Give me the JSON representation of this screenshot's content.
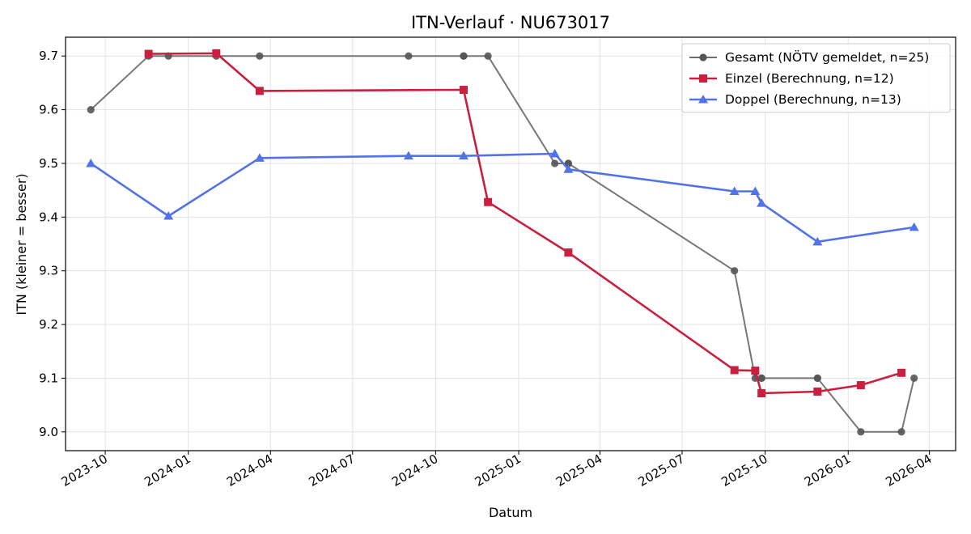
{
  "chart_data": {
    "type": "line",
    "title": "ITN-Verlauf · NU673017",
    "xlabel": "Datum",
    "ylabel": "ITN  (kleiner = besser)",
    "grid": true,
    "legend_position": "top-right",
    "ylim": [
      8.965,
      9.735
    ],
    "xlim": [
      "2023-08-18",
      "2026-04-30"
    ],
    "y_ticks": [
      "9.0",
      "9.1",
      "9.2",
      "9.3",
      "9.4",
      "9.5",
      "9.6",
      "9.7"
    ],
    "x_ticks": [
      "2023-10",
      "2024-01",
      "2024-04",
      "2024-07",
      "2024-10",
      "2025-01",
      "2025-04",
      "2025-07",
      "2025-10",
      "2026-01",
      "2026-04"
    ],
    "series": [
      {
        "name": "Gesamt (NÖTV gemeldet, n=25)",
        "color": "#555555",
        "marker": "circle",
        "points": [
          [
            "2023-09-15",
            9.6
          ],
          [
            "2023-11-18",
            9.7
          ],
          [
            "2023-12-10",
            9.7
          ],
          [
            "2024-02-01",
            9.7
          ],
          [
            "2024-03-20",
            9.7
          ],
          [
            "2024-09-01",
            9.7
          ],
          [
            "2024-11-01",
            9.7
          ],
          [
            "2024-11-01",
            9.7
          ],
          [
            "2024-11-28",
            9.7
          ],
          [
            "2025-02-10",
            9.5
          ],
          [
            "2025-02-25",
            9.5
          ],
          [
            "2025-02-25",
            9.5
          ],
          [
            "2025-08-28",
            9.3
          ],
          [
            "2025-09-20",
            9.1
          ],
          [
            "2025-09-27",
            9.1
          ],
          [
            "2025-09-27",
            9.1
          ],
          [
            "2025-11-28",
            9.1
          ],
          [
            "2025-11-28",
            9.1
          ],
          [
            "2026-01-15",
            9.0
          ],
          [
            "2026-03-01",
            9.0
          ],
          [
            "2026-03-15",
            9.1
          ]
        ]
      },
      {
        "name": "Einzel (Berechnung, n=12)",
        "color": "#c8203e",
        "marker": "square",
        "points": [
          [
            "2023-11-18",
            9.704
          ],
          [
            "2024-02-01",
            9.705
          ],
          [
            "2024-03-20",
            9.635
          ],
          [
            "2024-11-01",
            9.637
          ],
          [
            "2024-11-28",
            9.428
          ],
          [
            "2025-02-25",
            9.334
          ],
          [
            "2025-08-28",
            9.115
          ],
          [
            "2025-09-20",
            9.114
          ],
          [
            "2025-09-27",
            9.072
          ],
          [
            "2025-11-28",
            9.075
          ],
          [
            "2026-01-15",
            9.087
          ],
          [
            "2026-03-01",
            9.11
          ]
        ]
      },
      {
        "name": "Doppel (Berechnung, n=13)",
        "color": "#5272e8",
        "marker": "triangle",
        "points": [
          [
            "2023-09-15",
            9.5
          ],
          [
            "2023-12-10",
            9.402
          ],
          [
            "2024-03-20",
            9.51
          ],
          [
            "2024-09-01",
            9.514
          ],
          [
            "2024-11-01",
            9.514
          ],
          [
            "2025-02-10",
            9.518
          ],
          [
            "2025-02-25",
            9.489
          ],
          [
            "2025-08-28",
            9.448
          ],
          [
            "2025-09-20",
            9.448
          ],
          [
            "2025-09-27",
            9.426
          ],
          [
            "2025-11-28",
            9.354
          ],
          [
            "2026-03-15",
            9.381
          ]
        ]
      }
    ]
  }
}
